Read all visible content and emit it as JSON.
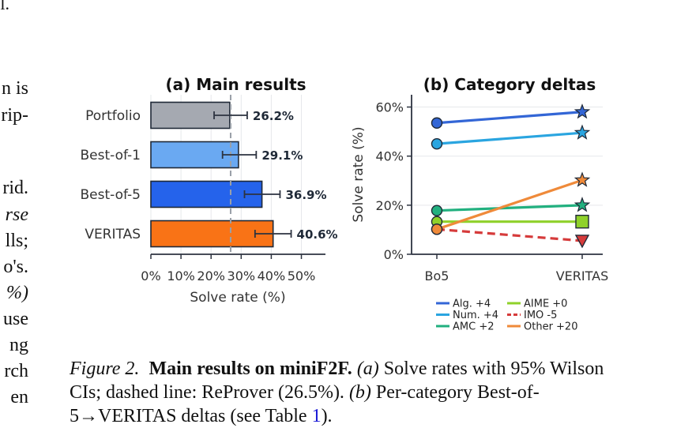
{
  "body_text_fragments": [
    "n is",
    "rip-",
    "rid.",
    "rse",
    "lls;",
    "o's.",
    "%)",
    "use",
    "ng",
    "rch",
    "en"
  ],
  "top_fragment": "l.",
  "chart_data": [
    {
      "type": "bar",
      "orientation": "horizontal",
      "title": "(a) Main results",
      "categories": [
        "Portfolio",
        "Best-of-1",
        "Best-of-5",
        "VERITAS"
      ],
      "values": [
        26.2,
        29.1,
        36.9,
        40.6
      ],
      "value_labels": [
        "26.2%",
        "29.1%",
        "36.9%",
        "40.6%"
      ],
      "ci_low": [
        21.0,
        23.8,
        31.1,
        34.6
      ],
      "ci_high": [
        32.0,
        35.0,
        42.9,
        46.6
      ],
      "colors": [
        "#a5a9b1",
        "#6aa9f2",
        "#2563eb",
        "#f97316"
      ],
      "reference_line": {
        "value": 26.5,
        "style": "dashed",
        "color": "#9aa0a8"
      },
      "xlabel": "Solve rate (%)",
      "xticks": [
        "0%",
        "10%",
        "20%",
        "30%",
        "40%",
        "50%"
      ],
      "xlim": [
        0,
        58
      ],
      "grid": true
    },
    {
      "type": "line",
      "title": "(b) Category deltas",
      "x": [
        "Bo5",
        "VERITAS"
      ],
      "ylabel": "Solve rate (%)",
      "yticks": [
        "0%",
        "20%",
        "40%",
        "60%"
      ],
      "ylim": [
        0,
        65
      ],
      "grid": true,
      "legend_position": "bottom",
      "series": [
        {
          "name": "Alg. +4",
          "values": [
            53.5,
            58.0
          ],
          "color": "#3366d6",
          "dashed": false,
          "end_marker": "star"
        },
        {
          "name": "Num. +4",
          "values": [
            45.0,
            49.5
          ],
          "color": "#2aa5e0",
          "dashed": false,
          "end_marker": "star"
        },
        {
          "name": "AMC +2",
          "values": [
            17.8,
            20.0
          ],
          "color": "#22b07f",
          "dashed": false,
          "end_marker": "star"
        },
        {
          "name": "AIME +0",
          "values": [
            13.3,
            13.3
          ],
          "color": "#8fd12a",
          "dashed": false,
          "end_marker": "square"
        },
        {
          "name": "IMO -5",
          "values": [
            10.2,
            5.5
          ],
          "color": "#d63b3b",
          "dashed": true,
          "end_marker": "triangle-down"
        },
        {
          "name": "Other +20",
          "values": [
            10.2,
            30.2
          ],
          "color": "#ef8a3a",
          "dashed": false,
          "end_marker": "star"
        }
      ]
    }
  ],
  "caption": {
    "label": "Figure 2.",
    "title": "Main results on miniF2F.",
    "part_a_label": "(a)",
    "part_a_text": "Solve rates with 95% Wilson CIs; dashed line: ReProver (26.5%).",
    "part_b_label": "(b)",
    "part_b_text": "Per-category Best-of-5→VERITAS deltas (see Table",
    "table_ref": "1",
    "tail": ")."
  }
}
